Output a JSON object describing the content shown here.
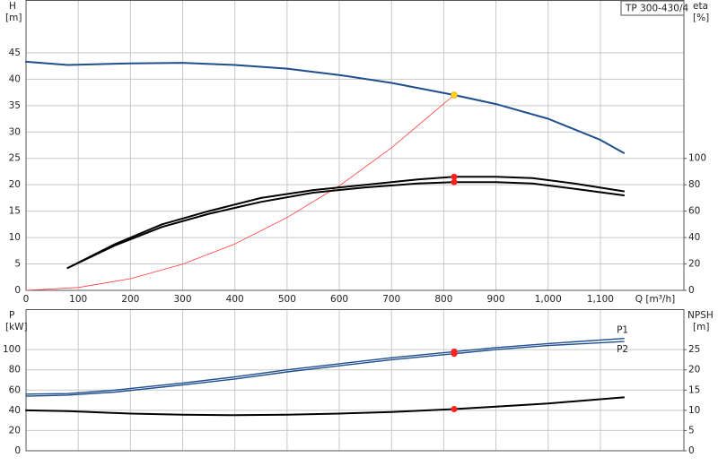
{
  "chart_data": [
    {
      "type": "line",
      "model_label": "TP 300-430/4",
      "y_title": "H",
      "y_unit": "[m]",
      "y2_title": "eta",
      "y2_unit": "[%]",
      "x_label": "Q [m³/h]",
      "xlim": [
        0,
        1260
      ],
      "xticks": [
        0,
        100,
        200,
        300,
        400,
        500,
        600,
        700,
        800,
        900,
        {
          "value": 1000,
          "label": "1,000"
        },
        {
          "value": 1100,
          "label": "1,100"
        }
      ],
      "ylim": [
        0,
        55
      ],
      "yticks": [
        0,
        5,
        10,
        15,
        20,
        25,
        30,
        35,
        40,
        45
      ],
      "y2lim": [
        0,
        220
      ],
      "y2ticks": [
        0,
        20,
        40,
        60,
        80,
        100
      ],
      "grid": true,
      "series": [
        {
          "color": "#1f4e8c",
          "line_width": 2,
          "x": [
            0,
            80,
            200,
            300,
            400,
            500,
            600,
            700,
            820,
            900,
            1000,
            1100,
            1145
          ],
          "values": [
            43.3,
            42.7,
            43,
            43.1,
            42.7,
            42,
            40.8,
            39.3,
            37,
            35.3,
            32.5,
            28.5,
            26
          ]
        },
        {
          "color": "#ff3b3b",
          "line_width": 0.8,
          "x": [
            0,
            100,
            200,
            300,
            400,
            500,
            600,
            700,
            820
          ],
          "values": [
            0,
            0.55,
            2.2,
            4.95,
            8.8,
            13.8,
            19.8,
            27,
            37
          ]
        },
        {
          "color": "#000000",
          "line_width": 2,
          "axis": "y2",
          "x": [
            80,
            170,
            260,
            350,
            450,
            550,
            650,
            750,
            820,
            900,
            970,
            1050,
            1145
          ],
          "values": [
            17,
            35,
            50,
            60,
            70,
            76,
            80,
            84,
            86,
            86,
            85,
            81,
            75
          ]
        },
        {
          "color": "#000000",
          "line_width": 2,
          "axis": "y2",
          "x": [
            80,
            170,
            260,
            350,
            450,
            550,
            650,
            750,
            820,
            900,
            970,
            1050,
            1145
          ],
          "values": [
            17,
            34,
            48,
            58,
            67,
            74,
            78,
            81,
            82,
            82,
            81,
            77,
            72
          ]
        }
      ],
      "points": [
        {
          "x": 820,
          "value": 37,
          "color": "#ffd21f"
        },
        {
          "x": 820,
          "value": 86,
          "color": "#ff2020",
          "axis": "y2"
        },
        {
          "x": 820,
          "value": 82,
          "color": "#ff2020",
          "axis": "y2"
        }
      ]
    },
    {
      "type": "line",
      "y_title": "P",
      "y_unit": "[kW]",
      "y2_title": "NPSH",
      "y2_unit": "[m]",
      "xlim": [
        0,
        1260
      ],
      "xticks": [
        0,
        100,
        200,
        300,
        400,
        500,
        600,
        700,
        800,
        900,
        1000,
        1100
      ],
      "ylim": [
        0,
        140
      ],
      "yticks": [
        0,
        20,
        40,
        60,
        80,
        100
      ],
      "y2lim": [
        0,
        35
      ],
      "y2ticks": [
        0,
        5,
        10,
        15,
        20,
        25
      ],
      "grid": true,
      "series": [
        {
          "name": "P1",
          "color": "#1f4e8c",
          "line_width": 1.4,
          "x": [
            0,
            80,
            170,
            300,
            400,
            500,
            600,
            700,
            820,
            900,
            1000,
            1145
          ],
          "values": [
            56,
            56.5,
            60,
            67,
            73,
            80,
            86,
            92,
            98,
            102,
            106,
            111
          ]
        },
        {
          "name": "P2",
          "color": "#1f4e8c",
          "line_width": 1.4,
          "x": [
            0,
            80,
            170,
            300,
            400,
            500,
            600,
            700,
            820,
            900,
            1000,
            1145
          ],
          "values": [
            54,
            55,
            58,
            65,
            71,
            78,
            84,
            90,
            96,
            100,
            104,
            108
          ]
        },
        {
          "color": "#000000",
          "line_width": 2,
          "axis": "y2",
          "x": [
            0,
            80,
            200,
            300,
            400,
            500,
            600,
            700,
            820,
            900,
            1000,
            1145
          ],
          "values": [
            10,
            9.8,
            9.2,
            8.9,
            8.8,
            8.9,
            9.2,
            9.6,
            10.3,
            10.9,
            11.7,
            13.2
          ]
        }
      ],
      "points": [
        {
          "x": 820,
          "value": 98,
          "color": "#ff2020"
        },
        {
          "x": 820,
          "value": 96,
          "color": "#ff2020"
        },
        {
          "x": 820,
          "value": 10.3,
          "color": "#ff2020",
          "axis": "y2"
        }
      ]
    }
  ]
}
